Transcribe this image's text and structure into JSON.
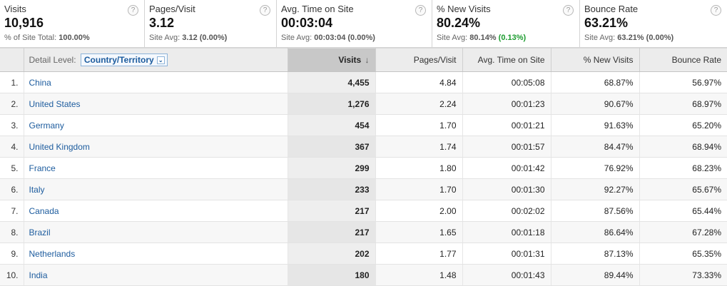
{
  "summary": [
    {
      "label": "Visits",
      "value": "10,916",
      "sub_prefix": "% of Site Total: ",
      "sub_value": "100.00%",
      "sub_delta": ""
    },
    {
      "label": "Pages/Visit",
      "value": "3.12",
      "sub_prefix": "Site Avg: ",
      "sub_value": "3.12",
      "sub_delta": "(0.00%)"
    },
    {
      "label": "Avg. Time on Site",
      "value": "00:03:04",
      "sub_prefix": "Site Avg: ",
      "sub_value": "00:03:04",
      "sub_delta": "(0.00%)"
    },
    {
      "label": "% New Visits",
      "value": "80.24%",
      "sub_prefix": "Site Avg: ",
      "sub_value": "80.14%",
      "sub_delta": "(0.13%)"
    },
    {
      "label": "Bounce Rate",
      "value": "63.21%",
      "sub_prefix": "Site Avg: ",
      "sub_value": "63.21%",
      "sub_delta": "(0.00%)"
    }
  ],
  "help_glyph": "?",
  "table": {
    "detail_label": "Detail Level:",
    "dimension": "Country/Territory",
    "sort_arrow": "↓",
    "dropdown_glyph": "⌄",
    "columns": [
      "Visits",
      "Pages/Visit",
      "Avg. Time on Site",
      "% New Visits",
      "Bounce Rate"
    ],
    "rows": [
      {
        "idx": "1.",
        "country": "China",
        "visits": "4,455",
        "ppv": "4.84",
        "time": "00:05:08",
        "new": "68.87%",
        "bounce": "56.97%"
      },
      {
        "idx": "2.",
        "country": "United States",
        "visits": "1,276",
        "ppv": "2.24",
        "time": "00:01:23",
        "new": "90.67%",
        "bounce": "68.97%"
      },
      {
        "idx": "3.",
        "country": "Germany",
        "visits": "454",
        "ppv": "1.70",
        "time": "00:01:21",
        "new": "91.63%",
        "bounce": "65.20%"
      },
      {
        "idx": "4.",
        "country": "United Kingdom",
        "visits": "367",
        "ppv": "1.74",
        "time": "00:01:57",
        "new": "84.47%",
        "bounce": "68.94%"
      },
      {
        "idx": "5.",
        "country": "France",
        "visits": "299",
        "ppv": "1.80",
        "time": "00:01:42",
        "new": "76.92%",
        "bounce": "68.23%"
      },
      {
        "idx": "6.",
        "country": "Italy",
        "visits": "233",
        "ppv": "1.70",
        "time": "00:01:30",
        "new": "92.27%",
        "bounce": "65.67%"
      },
      {
        "idx": "7.",
        "country": "Canada",
        "visits": "217",
        "ppv": "2.00",
        "time": "00:02:02",
        "new": "87.56%",
        "bounce": "65.44%"
      },
      {
        "idx": "8.",
        "country": "Brazil",
        "visits": "217",
        "ppv": "1.65",
        "time": "00:01:18",
        "new": "86.64%",
        "bounce": "67.28%"
      },
      {
        "idx": "9.",
        "country": "Netherlands",
        "visits": "202",
        "ppv": "1.77",
        "time": "00:01:31",
        "new": "87.13%",
        "bounce": "65.35%"
      },
      {
        "idx": "10.",
        "country": "India",
        "visits": "180",
        "ppv": "1.48",
        "time": "00:01:43",
        "new": "89.44%",
        "bounce": "73.33%"
      }
    ]
  },
  "colors": {
    "link": "#1d5c9e",
    "positive": "#1a9b2d",
    "sorted_header": "#c8c8c8"
  }
}
